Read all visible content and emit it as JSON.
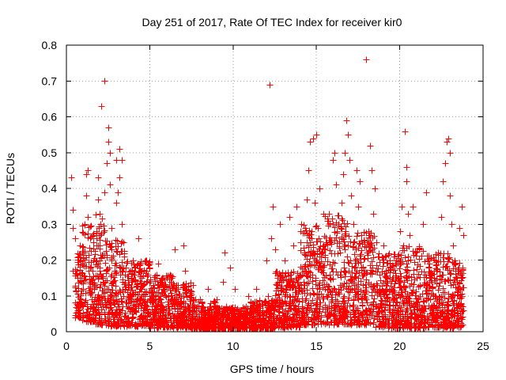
{
  "chart_data": {
    "type": "scatter",
    "title": "Day 251 of 2017, Rate Of TEC Index for receiver kir0",
    "xlabel": "GPS time / hours",
    "ylabel": "ROTI / TECUs",
    "xlim": [
      0,
      25
    ],
    "ylim": [
      0,
      0.8
    ],
    "xticks": [
      "0",
      "5",
      "10",
      "15",
      "20",
      "25"
    ],
    "yticks": [
      "0",
      "0.1",
      "0.2",
      "0.3",
      "0.4",
      "0.5",
      "0.6",
      "0.7",
      "0.8"
    ],
    "grid": true,
    "marker": "+",
    "color": "#ff0000",
    "points": [
      [
        0.3,
        0.43
      ],
      [
        0.4,
        0.34
      ],
      [
        0.4,
        0.29
      ],
      [
        0.5,
        0.26
      ],
      [
        0.4,
        0.17
      ],
      [
        0.6,
        0.17
      ],
      [
        0.7,
        0.21
      ],
      [
        0.8,
        0.24
      ],
      [
        0.9,
        0.15
      ],
      [
        0.9,
        0.08
      ],
      [
        1.0,
        0.12
      ],
      [
        1.1,
        0.22
      ],
      [
        1.1,
        0.3
      ],
      [
        1.2,
        0.38
      ],
      [
        1.2,
        0.44
      ],
      [
        1.3,
        0.45
      ],
      [
        1.3,
        0.32
      ],
      [
        1.4,
        0.26
      ],
      [
        1.4,
        0.18
      ],
      [
        1.5,
        0.11
      ],
      [
        1.6,
        0.07
      ],
      [
        1.6,
        0.03
      ],
      [
        1.7,
        0.13
      ],
      [
        1.8,
        0.2
      ],
      [
        1.8,
        0.28
      ],
      [
        1.9,
        0.37
      ],
      [
        1.9,
        0.43
      ],
      [
        2.0,
        0.33
      ],
      [
        2.0,
        0.24
      ],
      [
        2.1,
        0.63
      ],
      [
        2.2,
        0.15
      ],
      [
        2.2,
        0.1
      ],
      [
        2.3,
        0.7
      ],
      [
        2.3,
        0.39
      ],
      [
        2.4,
        0.47
      ],
      [
        2.5,
        0.53
      ],
      [
        2.5,
        0.57
      ],
      [
        2.6,
        0.5
      ],
      [
        2.6,
        0.41
      ],
      [
        2.7,
        0.29
      ],
      [
        2.7,
        0.2
      ],
      [
        2.8,
        0.14
      ],
      [
        2.9,
        0.08
      ],
      [
        2.9,
        0.05
      ],
      [
        3.0,
        0.36
      ],
      [
        3.0,
        0.48
      ],
      [
        3.1,
        0.39
      ],
      [
        3.2,
        0.43
      ],
      [
        3.2,
        0.51
      ],
      [
        3.3,
        0.48
      ],
      [
        3.3,
        0.3
      ],
      [
        3.4,
        0.25
      ],
      [
        3.5,
        0.16
      ],
      [
        3.5,
        0.12
      ],
      [
        3.6,
        0.07
      ],
      [
        3.7,
        0.04
      ],
      [
        3.8,
        0.1
      ],
      [
        3.9,
        0.14
      ],
      [
        4.0,
        0.2
      ],
      [
        4.1,
        0.17
      ],
      [
        4.2,
        0.09
      ],
      [
        4.3,
        0.26
      ],
      [
        4.4,
        0.12
      ],
      [
        4.5,
        0.15
      ],
      [
        4.6,
        0.06
      ],
      [
        4.7,
        0.03
      ],
      [
        4.8,
        0.11
      ],
      [
        4.9,
        0.16
      ],
      [
        5.0,
        0.1
      ],
      [
        5.1,
        0.07
      ],
      [
        5.2,
        0.13
      ],
      [
        5.3,
        0.09
      ],
      [
        5.5,
        0.19
      ],
      [
        5.6,
        0.14
      ],
      [
        5.8,
        0.06
      ],
      [
        6.0,
        0.04
      ],
      [
        6.1,
        0.1
      ],
      [
        6.3,
        0.15
      ],
      [
        6.5,
        0.23
      ],
      [
        6.6,
        0.12
      ],
      [
        6.8,
        0.08
      ],
      [
        7.0,
        0.24
      ],
      [
        7.1,
        0.17
      ],
      [
        7.2,
        0.1
      ],
      [
        7.3,
        0.05
      ],
      [
        7.5,
        0.02
      ],
      [
        7.6,
        0.13
      ],
      [
        7.8,
        0.06
      ],
      [
        8.0,
        0.09
      ],
      [
        8.2,
        0.04
      ],
      [
        8.4,
        0.02
      ],
      [
        8.5,
        0.12
      ],
      [
        8.6,
        0.07
      ],
      [
        8.8,
        0.02
      ],
      [
        9.0,
        0.09
      ],
      [
        9.1,
        0.04
      ],
      [
        9.3,
        0.02
      ],
      [
        9.4,
        0.14
      ],
      [
        9.5,
        0.22
      ],
      [
        9.6,
        0.07
      ],
      [
        9.8,
        0.18
      ],
      [
        10.0,
        0.05
      ],
      [
        10.1,
        0.12
      ],
      [
        10.3,
        0.02
      ],
      [
        10.5,
        0.06
      ],
      [
        10.7,
        0.03
      ],
      [
        10.9,
        0.1
      ],
      [
        11.0,
        0.05
      ],
      [
        11.2,
        0.02
      ],
      [
        11.4,
        0.12
      ],
      [
        11.6,
        0.06
      ],
      [
        11.8,
        0.04
      ],
      [
        12.0,
        0.2
      ],
      [
        12.1,
        0.1
      ],
      [
        12.2,
        0.69
      ],
      [
        12.3,
        0.26
      ],
      [
        12.4,
        0.35
      ],
      [
        12.5,
        0.23
      ],
      [
        12.6,
        0.13
      ],
      [
        12.8,
        0.3
      ],
      [
        13.0,
        0.08
      ],
      [
        13.1,
        0.2
      ],
      [
        13.3,
        0.13
      ],
      [
        13.4,
        0.32
      ],
      [
        13.6,
        0.24
      ],
      [
        13.8,
        0.35
      ],
      [
        14.0,
        0.16
      ],
      [
        14.1,
        0.3
      ],
      [
        14.3,
        0.22
      ],
      [
        14.4,
        0.37
      ],
      [
        14.5,
        0.45
      ],
      [
        14.6,
        0.53
      ],
      [
        14.7,
        0.28
      ],
      [
        14.8,
        0.54
      ],
      [
        14.9,
        0.36
      ],
      [
        15.0,
        0.55
      ],
      [
        15.1,
        0.29
      ],
      [
        15.2,
        0.4
      ],
      [
        15.3,
        0.22
      ],
      [
        15.4,
        0.33
      ],
      [
        15.5,
        0.12
      ],
      [
        15.6,
        0.25
      ],
      [
        15.8,
        0.3
      ],
      [
        16.0,
        0.48
      ],
      [
        16.1,
        0.5
      ],
      [
        16.2,
        0.41
      ],
      [
        16.3,
        0.3
      ],
      [
        16.4,
        0.22
      ],
      [
        16.5,
        0.36
      ],
      [
        16.6,
        0.44
      ],
      [
        16.7,
        0.5
      ],
      [
        16.8,
        0.59
      ],
      [
        16.9,
        0.55
      ],
      [
        17.0,
        0.48
      ],
      [
        17.1,
        0.38
      ],
      [
        17.2,
        0.3
      ],
      [
        17.3,
        0.2
      ],
      [
        17.4,
        0.45
      ],
      [
        17.5,
        0.35
      ],
      [
        17.6,
        0.42
      ],
      [
        17.7,
        0.27
      ],
      [
        17.8,
        0.18
      ],
      [
        17.9,
        0.1
      ],
      [
        18.0,
        0.76
      ],
      [
        18.1,
        0.28
      ],
      [
        18.2,
        0.52
      ],
      [
        18.3,
        0.45
      ],
      [
        18.4,
        0.33
      ],
      [
        18.5,
        0.4
      ],
      [
        18.6,
        0.25
      ],
      [
        18.8,
        0.16
      ],
      [
        19.0,
        0.24
      ],
      [
        19.2,
        0.12
      ],
      [
        19.4,
        0.18
      ],
      [
        19.6,
        0.09
      ],
      [
        19.8,
        0.2
      ],
      [
        20.0,
        0.28
      ],
      [
        20.1,
        0.35
      ],
      [
        20.2,
        0.24
      ],
      [
        20.3,
        0.56
      ],
      [
        20.4,
        0.46
      ],
      [
        20.4,
        0.42
      ],
      [
        20.5,
        0.33
      ],
      [
        20.6,
        0.27
      ],
      [
        20.8,
        0.35
      ],
      [
        20.9,
        0.22
      ],
      [
        21.0,
        0.15
      ],
      [
        21.2,
        0.1
      ],
      [
        21.4,
        0.3
      ],
      [
        21.6,
        0.39
      ],
      [
        21.7,
        0.2
      ],
      [
        21.9,
        0.14
      ],
      [
        22.1,
        0.1
      ],
      [
        22.3,
        0.22
      ],
      [
        22.5,
        0.32
      ],
      [
        22.6,
        0.42
      ],
      [
        22.7,
        0.47
      ],
      [
        22.8,
        0.53
      ],
      [
        22.9,
        0.54
      ],
      [
        23.0,
        0.5
      ],
      [
        23.0,
        0.38
      ],
      [
        23.1,
        0.3
      ],
      [
        23.2,
        0.24
      ],
      [
        23.3,
        0.14
      ],
      [
        23.4,
        0.08
      ],
      [
        23.5,
        0.17
      ],
      [
        23.6,
        0.29
      ],
      [
        23.7,
        0.35
      ],
      [
        23.8,
        0.27
      ],
      [
        23.8,
        0.06
      ]
    ],
    "dense_bands": [
      [
        0.5,
        0.9,
        0.1,
        0.22
      ],
      [
        0.9,
        1.6,
        0.07,
        0.3
      ],
      [
        1.6,
        2.5,
        0.05,
        0.33
      ],
      [
        2.5,
        3.5,
        0.04,
        0.26
      ],
      [
        3.5,
        5.0,
        0.04,
        0.2
      ],
      [
        5.0,
        6.5,
        0.03,
        0.16
      ],
      [
        6.5,
        7.5,
        0.03,
        0.14
      ],
      [
        7.5,
        9.0,
        0.02,
        0.09
      ],
      [
        9.0,
        11.0,
        0.02,
        0.07
      ],
      [
        11.0,
        12.5,
        0.02,
        0.09
      ],
      [
        12.5,
        14.0,
        0.03,
        0.17
      ],
      [
        14.0,
        15.5,
        0.05,
        0.3
      ],
      [
        15.5,
        17.0,
        0.05,
        0.33
      ],
      [
        17.0,
        18.5,
        0.05,
        0.28
      ],
      [
        18.5,
        20.0,
        0.03,
        0.22
      ],
      [
        20.0,
        21.5,
        0.03,
        0.24
      ],
      [
        21.5,
        23.0,
        0.03,
        0.22
      ],
      [
        23.0,
        23.8,
        0.03,
        0.2
      ]
    ]
  }
}
